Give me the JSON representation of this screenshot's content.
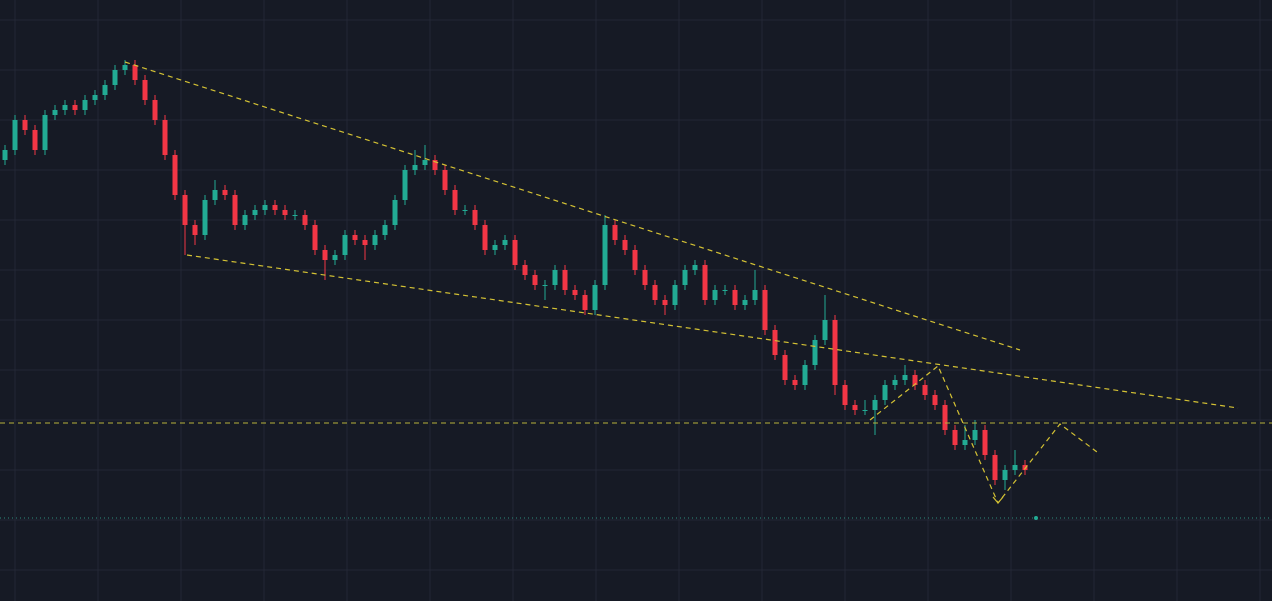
{
  "chart_data": {
    "type": "candlestick",
    "up_color": "#22ab94",
    "down_color": "#f23645",
    "ylim": [
      0,
      600
    ],
    "series": [
      {
        "open": [
          440,
          450,
          480,
          470,
          450,
          485,
          490,
          495,
          490,
          500,
          505,
          515,
          530,
          535,
          520,
          500,
          480,
          445,
          405,
          375,
          365,
          400,
          410,
          405,
          375,
          385,
          390,
          395,
          390,
          385,
          385,
          375,
          350,
          340,
          345,
          365,
          360,
          355,
          365,
          375,
          400,
          430,
          435,
          440,
          430,
          410,
          390,
          390,
          375,
          350,
          355,
          360,
          335,
          325,
          315,
          315,
          330,
          310,
          305,
          290,
          315,
          375,
          360,
          350,
          330,
          315,
          300,
          295,
          315,
          330,
          335,
          300,
          310,
          310,
          295,
          300,
          310,
          270,
          245,
          220,
          215,
          235,
          260,
          280,
          215,
          195,
          190,
          190,
          200,
          215,
          220,
          225,
          215,
          205,
          195,
          170,
          155,
          160,
          170,
          145,
          120,
          130,
          135
        ],
        "high": [
          455,
          485,
          485,
          475,
          490,
          495,
          500,
          500,
          505,
          510,
          520,
          535,
          540,
          540,
          525,
          505,
          485,
          450,
          410,
          380,
          405,
          420,
          415,
          410,
          390,
          395,
          400,
          400,
          395,
          390,
          390,
          380,
          355,
          350,
          370,
          370,
          365,
          370,
          380,
          405,
          435,
          450,
          455,
          445,
          435,
          415,
          395,
          395,
          380,
          360,
          365,
          365,
          340,
          330,
          320,
          335,
          335,
          315,
          310,
          320,
          385,
          380,
          365,
          355,
          335,
          320,
          305,
          320,
          335,
          340,
          340,
          315,
          315,
          315,
          305,
          330,
          315,
          275,
          250,
          225,
          240,
          265,
          305,
          285,
          220,
          200,
          200,
          205,
          220,
          225,
          235,
          230,
          220,
          210,
          200,
          175,
          175,
          180,
          175,
          150,
          135,
          150,
          140
        ],
        "low": [
          435,
          445,
          465,
          445,
          445,
          480,
          485,
          485,
          485,
          495,
          500,
          510,
          525,
          515,
          495,
          475,
          440,
          400,
          345,
          355,
          360,
          395,
          400,
          370,
          370,
          380,
          385,
          385,
          380,
          380,
          370,
          345,
          320,
          335,
          340,
          355,
          340,
          350,
          360,
          370,
          395,
          425,
          430,
          425,
          405,
          385,
          385,
          370,
          345,
          345,
          350,
          330,
          320,
          310,
          300,
          310,
          305,
          300,
          285,
          285,
          310,
          355,
          345,
          325,
          310,
          295,
          285,
          290,
          310,
          325,
          295,
          295,
          305,
          290,
          290,
          295,
          265,
          240,
          215,
          210,
          210,
          230,
          255,
          205,
          190,
          185,
          185,
          165,
          195,
          210,
          215,
          210,
          200,
          190,
          165,
          150,
          150,
          155,
          140,
          115,
          110,
          125,
          125
        ],
        "close": [
          450,
          480,
          470,
          450,
          485,
          490,
          495,
          490,
          500,
          505,
          515,
          530,
          535,
          520,
          500,
          480,
          445,
          405,
          375,
          365,
          400,
          410,
          405,
          375,
          385,
          390,
          395,
          390,
          385,
          385,
          375,
          350,
          340,
          345,
          365,
          360,
          355,
          365,
          375,
          400,
          430,
          435,
          440,
          430,
          410,
          390,
          390,
          375,
          350,
          355,
          360,
          335,
          325,
          315,
          315,
          330,
          310,
          305,
          290,
          315,
          375,
          360,
          350,
          330,
          315,
          300,
          295,
          315,
          330,
          335,
          300,
          310,
          310,
          295,
          300,
          310,
          270,
          245,
          220,
          215,
          235,
          260,
          280,
          215,
          195,
          190,
          190,
          200,
          215,
          220,
          225,
          215,
          205,
          195,
          170,
          155,
          160,
          170,
          145,
          120,
          130,
          135,
          130
        ]
      }
    ]
  }
}
